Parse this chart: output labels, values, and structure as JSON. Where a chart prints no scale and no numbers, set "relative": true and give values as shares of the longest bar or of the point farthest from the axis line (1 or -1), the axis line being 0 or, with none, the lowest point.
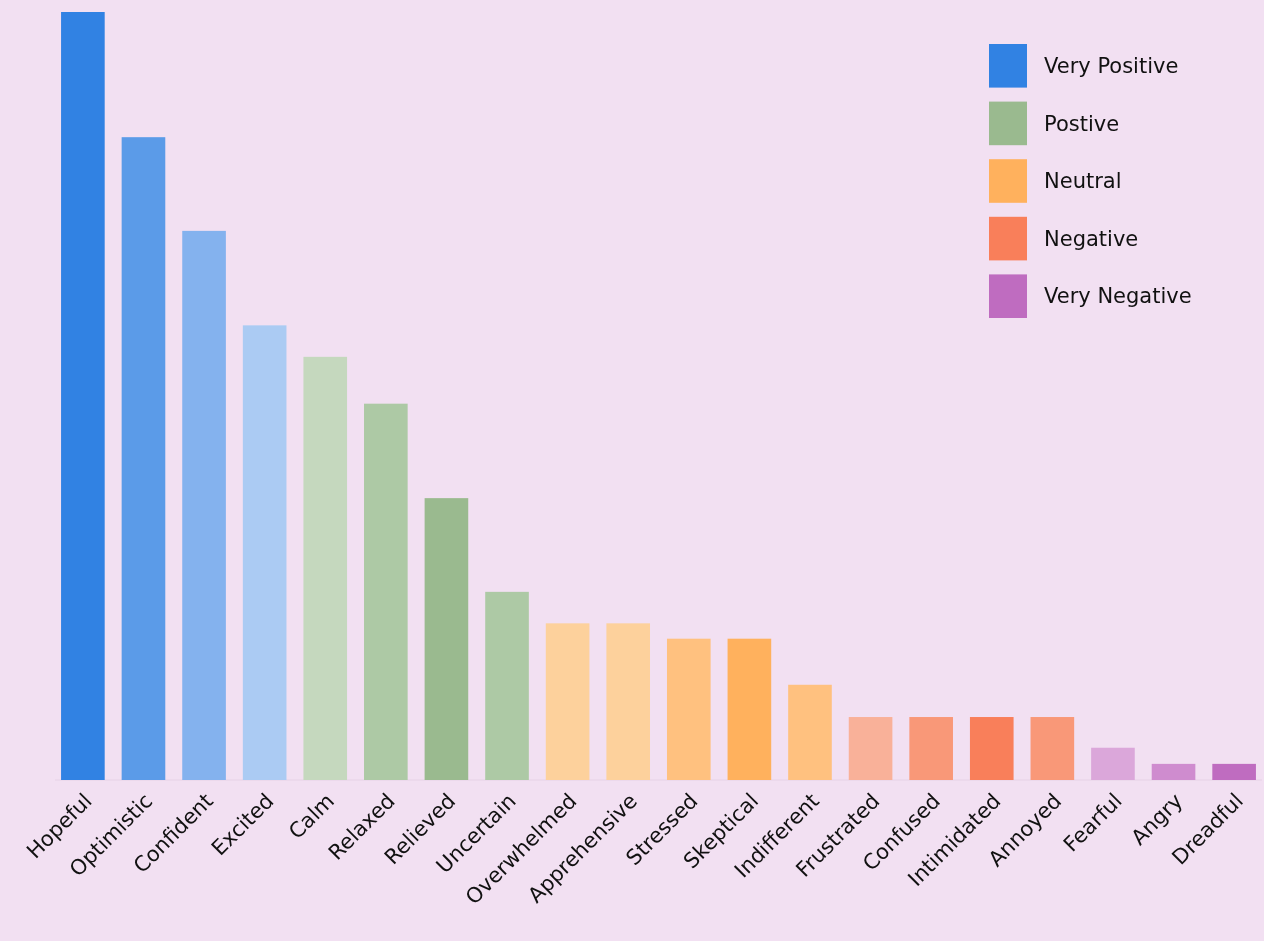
{
  "chart_data": {
    "type": "bar",
    "relative": true,
    "legend": "top right",
    "categories": [
      "Hopeful",
      "Optimistic",
      "Confident",
      "Excited",
      "Calm",
      "Relaxed",
      "Relieved",
      "Uncertain",
      "Overwhelmed",
      "Apprehensive",
      "Stressed",
      "Skeptical",
      "Indifferent",
      "Frustrated",
      "Confused",
      "Intimidated",
      "Annoyed",
      "Fearful",
      "Angry",
      "Dreadful"
    ],
    "series": [
      {
        "name": "Very Positive",
        "color": "#3182e3",
        "values": [
          1,
          0.837,
          0.715,
          0.592,
          null,
          null,
          null,
          null,
          null,
          null,
          null,
          null,
          null,
          null,
          null,
          null,
          null,
          null,
          null,
          null
        ],
        "colors": [
          "#3182e3",
          "#5b9be8",
          "#84b2ee",
          "#abcbf3",
          null,
          null,
          null,
          null,
          null,
          null,
          null,
          null,
          null,
          null,
          null,
          null,
          null,
          null,
          null,
          null
        ]
      },
      {
        "name": "Postive",
        "color": "#9aba8f",
        "values": [
          null,
          null,
          null,
          null,
          0.551,
          0.49,
          0.367,
          0.245,
          null,
          null,
          null,
          null,
          null,
          null,
          null,
          null,
          null,
          null,
          null,
          null
        ],
        "colors": [
          null,
          null,
          null,
          null,
          "#c5d8be",
          "#adc9a5",
          "#9aba8f",
          "#adc9a5",
          null,
          null,
          null,
          null,
          null,
          null,
          null,
          null,
          null,
          null,
          null,
          null
        ]
      },
      {
        "name": "Neutral",
        "color": "#ffb15d",
        "values": [
          null,
          null,
          null,
          null,
          null,
          null,
          null,
          null,
          0.204,
          0.204,
          0.184,
          0.184,
          0.124,
          null,
          null,
          null,
          null,
          null,
          null,
          null
        ],
        "colors": [
          null,
          null,
          null,
          null,
          null,
          null,
          null,
          null,
          "#fdd19c",
          "#fdd19c",
          "#ffc17f",
          "#ffb15d",
          "#ffc17f",
          null,
          null,
          null,
          null,
          null,
          null,
          null
        ]
      },
      {
        "name": "Negative",
        "color": "#f97f5a",
        "values": [
          null,
          null,
          null,
          null,
          null,
          null,
          null,
          null,
          null,
          null,
          null,
          null,
          null,
          0.082,
          0.082,
          0.082,
          0.082,
          null,
          null,
          null
        ],
        "colors": [
          null,
          null,
          null,
          null,
          null,
          null,
          null,
          null,
          null,
          null,
          null,
          null,
          null,
          "#f9b199",
          "#f99878",
          "#f97f5a",
          "#f99878",
          null,
          null,
          null
        ]
      },
      {
        "name": "Very Negative",
        "color": "#bf6cc0",
        "values": [
          null,
          null,
          null,
          null,
          null,
          null,
          null,
          null,
          null,
          null,
          null,
          null,
          null,
          null,
          null,
          null,
          null,
          0.042,
          0.021,
          0.021
        ],
        "colors": [
          null,
          null,
          null,
          null,
          null,
          null,
          null,
          null,
          null,
          null,
          null,
          null,
          null,
          null,
          null,
          null,
          null,
          "#dba7da",
          "#cf8ccf",
          "#bf6cc0"
        ]
      }
    ]
  }
}
